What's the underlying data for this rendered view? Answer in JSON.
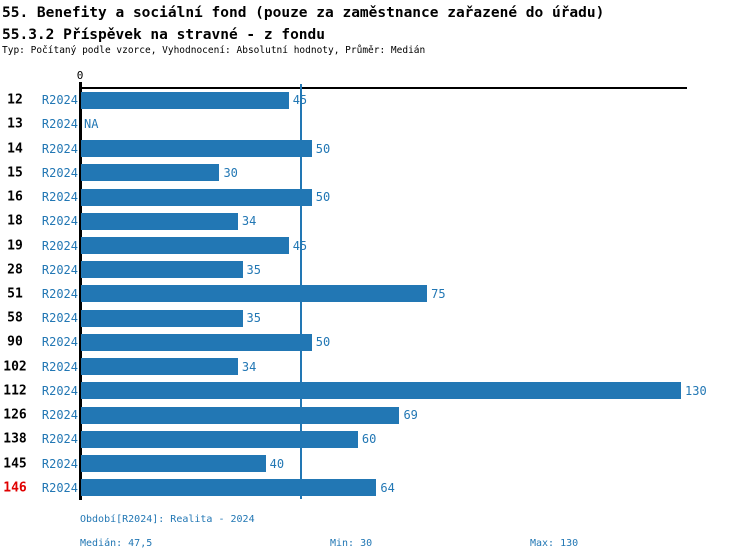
{
  "chart_data": {
    "type": "bar",
    "orientation": "horizontal",
    "title": "55. Benefity a sociální fond (pouze za zaměstnance zařazené do úřadu)",
    "subtitle": "55.3.2 Příspěvek na stravné - z fondu",
    "meta": "Typ: Počítaný podle vzorce, Vyhodnocení: Absolutní hodnoty, Průměr: Medián",
    "axis_zero_label": "0",
    "xlim": [
      0,
      131.4
    ],
    "grid": false,
    "legend": false,
    "categories": [
      "12",
      "13",
      "14",
      "15",
      "16",
      "18",
      "19",
      "28",
      "51",
      "58",
      "90",
      "102",
      "112",
      "126",
      "138",
      "145",
      "146"
    ],
    "period_label": "R2024",
    "values": [
      45,
      null,
      50,
      30,
      50,
      34,
      45,
      35,
      75,
      35,
      50,
      34,
      130,
      69,
      60,
      40,
      64
    ],
    "na_label": "NA",
    "highlighted_category": "146",
    "median_value": 47.5,
    "stats": {
      "median": 47.5,
      "min": 30,
      "max": 130
    }
  },
  "footer": {
    "period": "Období[R2024]: Realita - 2024",
    "median": "Medián: 47,5",
    "min": "Min: 30",
    "max": "Max: 130"
  },
  "colors": {
    "accent": "#2277b4",
    "highlight": "#e00000",
    "axis": "#000000",
    "background": "#ffffff"
  }
}
